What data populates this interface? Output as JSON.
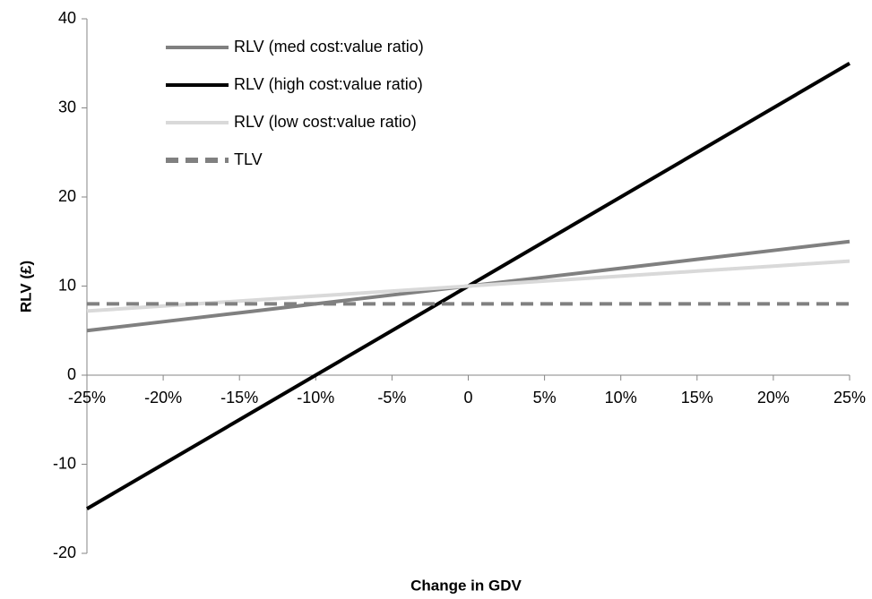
{
  "chart_data": {
    "type": "line",
    "xlabel": "Change in GDV",
    "ylabel": "RLV (£)",
    "x": [
      -25,
      -20,
      -15,
      -10,
      -5,
      0,
      5,
      10,
      15,
      20,
      25
    ],
    "series": [
      {
        "name": "RLV (med cost:value ratio)",
        "color": "#808080",
        "linestyle": "solid",
        "values": [
          5,
          6,
          7,
          8,
          9,
          10,
          11,
          12,
          13,
          14,
          15
        ]
      },
      {
        "name": "RLV (high cost:value ratio)",
        "color": "#000000",
        "linestyle": "solid",
        "values": [
          -15,
          -10,
          -5,
          0,
          5,
          10,
          15,
          20,
          25,
          30,
          35
        ]
      },
      {
        "name": "RLV (low cost:value ratio)",
        "color": "#d9d9d9",
        "linestyle": "solid",
        "values": [
          7.2,
          7.76,
          8.32,
          8.88,
          9.44,
          10,
          10.56,
          11.12,
          11.68,
          12.24,
          12.8
        ]
      },
      {
        "name": "TLV",
        "color": "#808080",
        "linestyle": "dashed",
        "values": [
          8,
          8,
          8,
          8,
          8,
          8,
          8,
          8,
          8,
          8,
          8
        ]
      }
    ],
    "xlim": [
      -25,
      25
    ],
    "xticks": [
      {
        "value": -25,
        "label": "-25%"
      },
      {
        "value": -20,
        "label": "-20%"
      },
      {
        "value": -15,
        "label": "-15%"
      },
      {
        "value": -10,
        "label": "-10%"
      },
      {
        "value": -5,
        "label": "-5%"
      },
      0,
      {
        "value": 5,
        "label": "5%"
      },
      {
        "value": 10,
        "label": "10%"
      },
      {
        "value": 15,
        "label": "15%"
      },
      {
        "value": 20,
        "label": "20%"
      },
      {
        "value": 25,
        "label": "25%"
      }
    ],
    "ylim": [
      -20,
      40
    ],
    "yticks": [
      -20,
      -10,
      0,
      10,
      20,
      30,
      40
    ],
    "grid": false,
    "legend": "upper left"
  }
}
